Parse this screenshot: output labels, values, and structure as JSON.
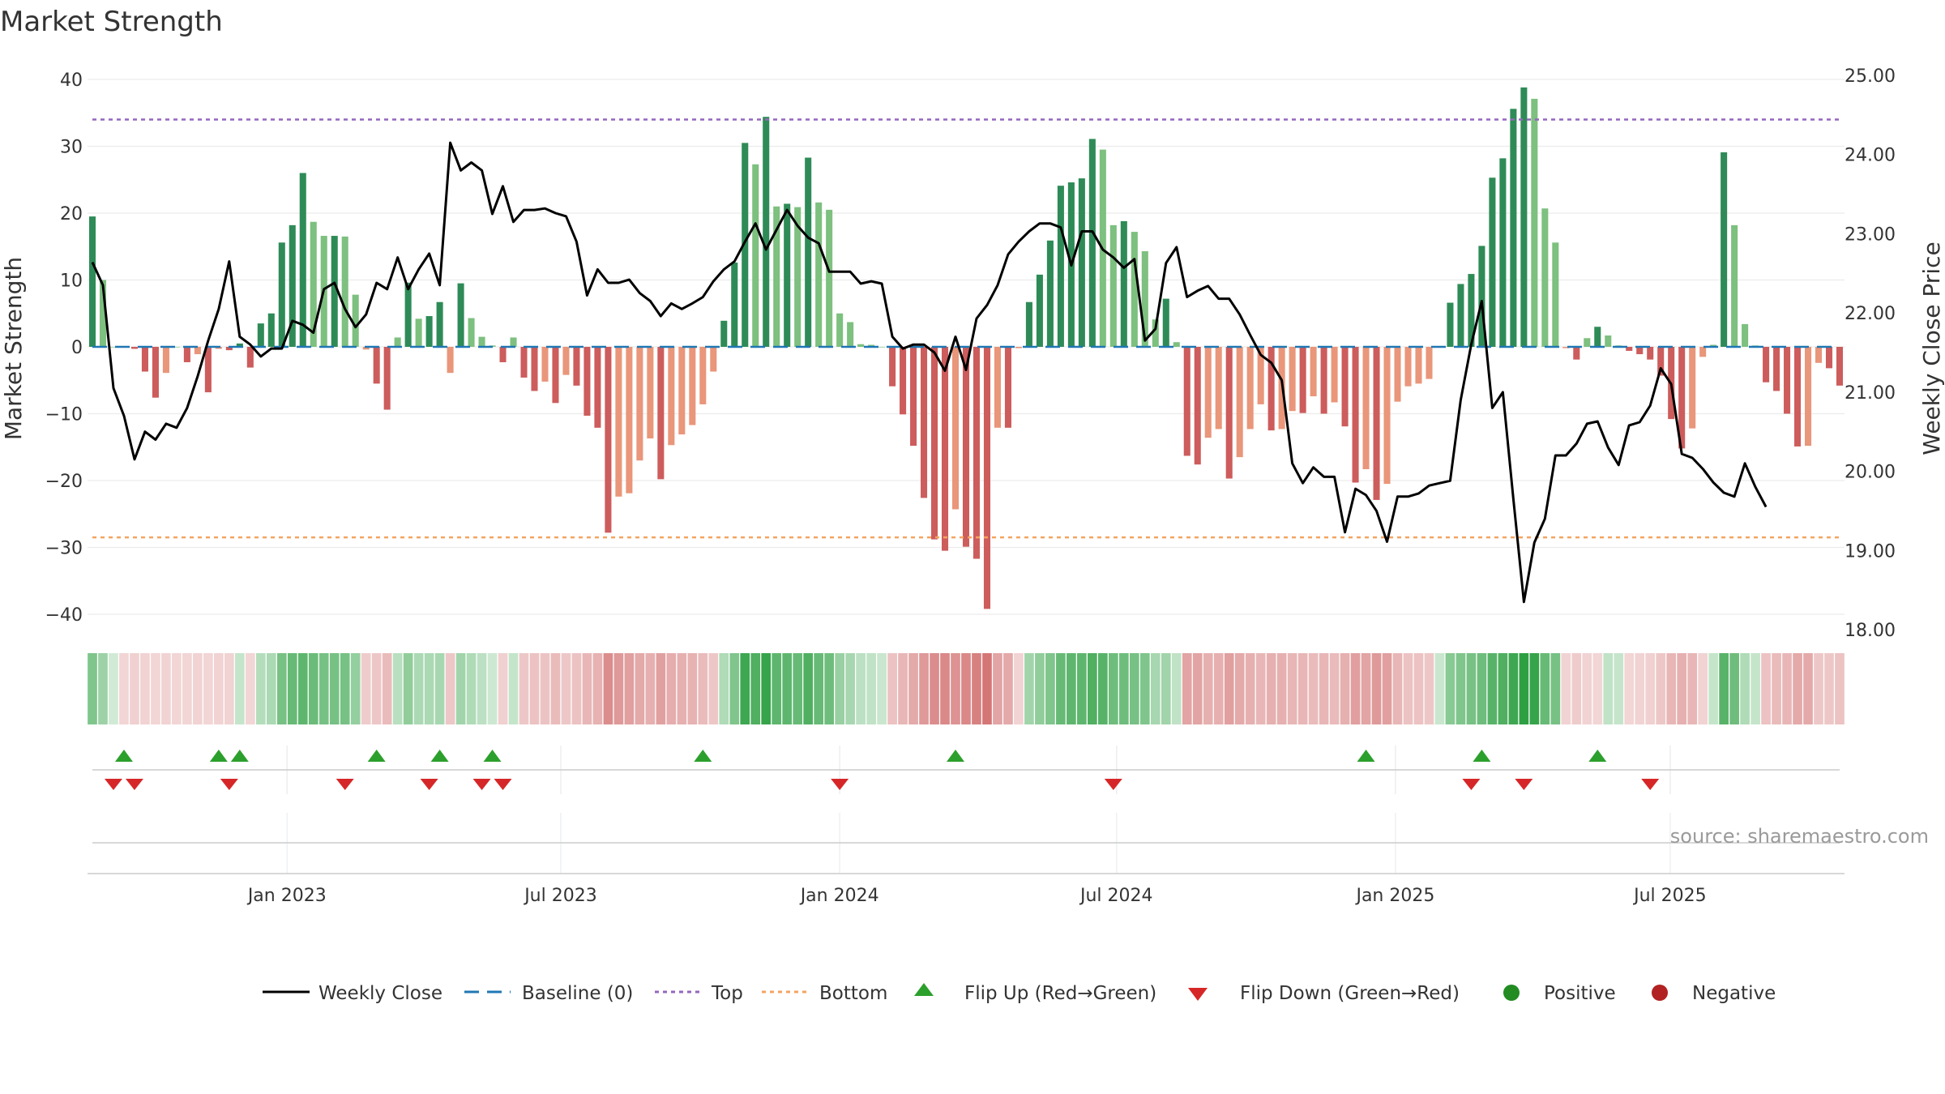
{
  "chart_data": {
    "type": "bar",
    "title": "Market Strength",
    "ylabel": "Market Strength",
    "y2label": "Weekly Close Price",
    "ylim": [
      -43,
      42
    ],
    "y2lim": [
      17.9,
      25.2
    ],
    "yticks": [
      40,
      30,
      20,
      10,
      0,
      -10,
      -20,
      -30,
      -40
    ],
    "y2ticks": [
      25.0,
      24.0,
      23.0,
      22.0,
      21.0,
      20.0,
      19.0,
      18.0
    ],
    "y2tick_labels": [
      "25.00",
      "24.00",
      "23.00",
      "22.00",
      "21.00",
      "20.00",
      "19.00",
      "18.00"
    ],
    "y_tick_labels": [
      "40",
      "30",
      "20",
      "10",
      "0",
      "−10",
      "−20",
      "−30",
      "−40"
    ],
    "x_date_ticks": [
      {
        "index": 18.5,
        "label": "Jan 2023"
      },
      {
        "index": 44.5,
        "label": "Jul 2023"
      },
      {
        "index": 71,
        "label": "Jan 2024"
      },
      {
        "index": 97.3,
        "label": "Jul 2024"
      },
      {
        "index": 123.8,
        "label": "Jan 2025"
      },
      {
        "index": 149.9,
        "label": "Jul 2025"
      }
    ],
    "top_threshold": 34,
    "bottom_threshold": -28.5,
    "strength": [
      19.5,
      10,
      0,
      0,
      -0.3,
      -3.7,
      -7.6,
      -3.9,
      0,
      -2.3,
      -1.1,
      -6.8,
      -0.3,
      -0.5,
      0.5,
      -3.1,
      3.5,
      5,
      15.6,
      18.2,
      26,
      18.7,
      16.6,
      16.6,
      16.5,
      7.8,
      -0.4,
      -5.5,
      -9.4,
      1.4,
      9.6,
      4.2,
      4.6,
      6.7,
      -3.9,
      9.5,
      4.3,
      1.5,
      0.2,
      -2.3,
      1.4,
      -4.6,
      -6.6,
      -5.2,
      -8.4,
      -4.2,
      -5.8,
      -10.3,
      -12.1,
      -27.8,
      -22.4,
      -21.9,
      -17,
      -13.7,
      -19.8,
      -14.7,
      -13.1,
      -11.7,
      -8.6,
      -3.7,
      3.9,
      12.6,
      30.5,
      27.3,
      34.4,
      21,
      21.4,
      20.9,
      28.3,
      21.6,
      20.5,
      5,
      3.7,
      0.4,
      0.3,
      0,
      -5.9,
      -10.1,
      -14.8,
      -22.6,
      -28.8,
      -30.5,
      -24.3,
      -29.9,
      -31.7,
      -39.2,
      -12.1,
      -12.1,
      -0.2,
      6.7,
      10.8,
      15.9,
      24.1,
      24.6,
      25.2,
      31.1,
      29.5,
      18.2,
      18.8,
      17.2,
      14.3,
      4.1,
      7.2,
      0.7,
      -16.3,
      -17.6,
      -13.6,
      -12.3,
      -19.7,
      -16.5,
      -12.3,
      -8.6,
      -12.5,
      -12.3,
      -9.6,
      -9.9,
      -7.4,
      -10,
      -8.3,
      -11.9,
      -20.3,
      -18.3,
      -22.9,
      -20.5,
      -8.2,
      -5.9,
      -5.5,
      -4.8,
      0.1,
      6.6,
      9.4,
      10.9,
      15.1,
      25.3,
      28.2,
      35.6,
      38.8,
      37.1,
      20.7,
      15.6,
      -0.2,
      -1.9,
      1.3,
      3,
      1.7,
      0.2,
      -0.6,
      -1.1,
      -1.9,
      -4.3,
      -10.8,
      -15.2,
      -12.2,
      -1.5,
      0.3,
      29.1,
      18.2,
      3.4,
      0.2,
      -5.3,
      -6.6,
      -10,
      -14.9,
      -14.8,
      -2.4,
      -3.2,
      -5.8
    ],
    "weekly_close": [
      22.64,
      22.35,
      21.05,
      20.7,
      20.15,
      20.5,
      20.4,
      20.6,
      20.55,
      20.8,
      21.2,
      21.65,
      22.05,
      22.65,
      21.7,
      21.6,
      21.45,
      21.55,
      21.55,
      21.9,
      21.85,
      21.75,
      22.3,
      22.38,
      22.05,
      21.82,
      21.98,
      22.38,
      22.3,
      22.7,
      22.3,
      22.55,
      22.75,
      22.35,
      24.15,
      23.8,
      23.9,
      23.8,
      23.25,
      23.6,
      23.15,
      23.3,
      23.3,
      23.32,
      23.26,
      23.22,
      22.9,
      22.22,
      22.55,
      22.38,
      22.38,
      22.42,
      22.25,
      22.15,
      21.96,
      22.12,
      22.05,
      22.12,
      22.2,
      22.4,
      22.55,
      22.65,
      22.9,
      23.13,
      22.8,
      23.05,
      23.3,
      23.1,
      22.95,
      22.88,
      22.52,
      22.52,
      22.52,
      22.37,
      22.4,
      22.37,
      21.7,
      21.55,
      21.6,
      21.6,
      21.5,
      21.27,
      21.7,
      21.28,
      21.93,
      22.1,
      22.35,
      22.74,
      22.9,
      23.03,
      23.13,
      23.13,
      23.08,
      22.6,
      23.03,
      23.03,
      22.8,
      22.7,
      22.57,
      22.68,
      21.65,
      21.8,
      22.63,
      22.83,
      22.2,
      22.28,
      22.34,
      22.18,
      22.18,
      21.98,
      21.72,
      21.47,
      21.37,
      21.15,
      20.1,
      19.85,
      20.05,
      19.93,
      19.93,
      19.23,
      19.78,
      19.7,
      19.5,
      19.11,
      19.68,
      19.68,
      19.72,
      19.82,
      19.85,
      19.88,
      20.9,
      21.6,
      22.15,
      20.8,
      21.0,
      19.65,
      18.35,
      19.1,
      19.4,
      20.2,
      20.2,
      20.35,
      20.6,
      20.63,
      20.3,
      20.08,
      20.58,
      20.62,
      20.83,
      21.3,
      21.1,
      20.22,
      20.17,
      20.03,
      19.86,
      19.73,
      19.68,
      20.1,
      19.8,
      19.55
    ],
    "strip_values": [
      20,
      13,
      0,
      -3,
      -5,
      -4,
      -3,
      -4,
      -3,
      -3,
      -4,
      -3,
      -4,
      -4,
      3,
      -3,
      7,
      9,
      22,
      26,
      28,
      25,
      22,
      22,
      22,
      15,
      -6,
      -8,
      -12,
      6,
      16,
      9,
      9,
      10,
      -8,
      12,
      8,
      5,
      1,
      -5,
      3,
      -8,
      -10,
      -9,
      -12,
      -8,
      -10,
      -14,
      -15,
      -28,
      -24,
      -22,
      -18,
      -16,
      -21,
      -17,
      -16,
      -15,
      -12,
      -8,
      8,
      20,
      36,
      32,
      38,
      28,
      28,
      26,
      32,
      26,
      24,
      14,
      10,
      5,
      4,
      2,
      -10,
      -14,
      -18,
      -24,
      -28,
      -30,
      -26,
      -30,
      -32,
      -36,
      -20,
      -18,
      -4,
      12,
      16,
      20,
      26,
      28,
      28,
      32,
      30,
      24,
      24,
      22,
      20,
      10,
      12,
      4,
      -20,
      -20,
      -16,
      -16,
      -22,
      -18,
      -16,
      -14,
      -16,
      -16,
      -14,
      -14,
      -12,
      -14,
      -12,
      -16,
      -22,
      -20,
      -24,
      -22,
      -14,
      -10,
      -10,
      -8,
      2,
      18,
      20,
      22,
      24,
      30,
      32,
      36,
      40,
      38,
      26,
      22,
      -4,
      -6,
      -4,
      -3,
      4,
      3,
      -3,
      -4,
      -5,
      -8,
      -14,
      -16,
      -14,
      -4,
      3,
      30,
      24,
      8,
      3,
      -10,
      -12,
      -14,
      -18,
      -18,
      -8,
      -8,
      -10
    ],
    "flip_up_indices": [
      3,
      12,
      14,
      27,
      33,
      38,
      58,
      82,
      121,
      132,
      143
    ],
    "flip_down_indices": [
      2,
      4,
      13,
      24,
      32,
      37,
      39,
      71,
      97,
      131,
      136,
      148
    ],
    "legend": [
      "Weekly Close",
      "Baseline (0)",
      "Top",
      "Bottom",
      "Flip Up (Red→Green)",
      "Flip Down (Green→Red)",
      "Positive",
      "Negative"
    ],
    "source": "source: sharemaestro.com",
    "colors": {
      "strong_green": "#2e8b57",
      "light_green": "#7dc07f",
      "strong_red": "#cd5c5c",
      "light_red": "#e9967a",
      "top_line": "#9467bd",
      "bottom_line": "#f4a460",
      "baseline": "#1f77b4",
      "close_line": "#000000",
      "flip_up": "#2ca02c",
      "flip_down": "#d62728",
      "positive_dot": "#228b22",
      "negative_dot": "#b22222"
    }
  }
}
